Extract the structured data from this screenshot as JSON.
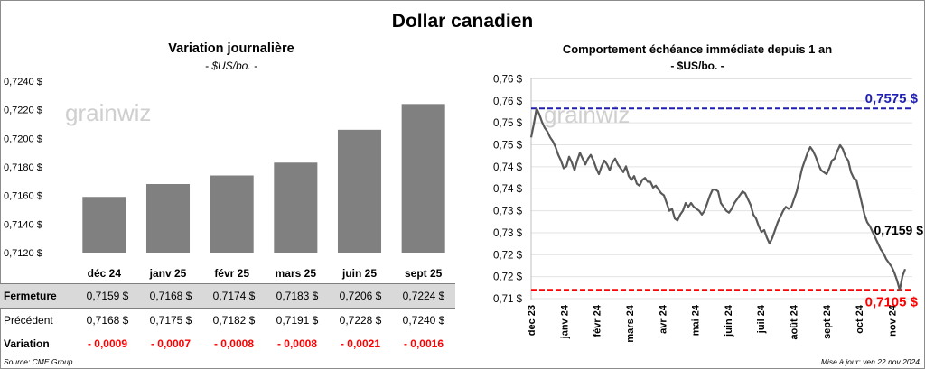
{
  "title": "Dollar canadien",
  "left": {
    "title": "Variation  journalière",
    "unit": "- $US/bo. -",
    "watermark": "grainwiz",
    "chart_data": {
      "type": "bar",
      "categories": [
        "déc 24",
        "janv 25",
        "févr 25",
        "mars 25",
        "juin 25",
        "sept 25"
      ],
      "values": [
        0.7159,
        0.7168,
        0.7174,
        0.7183,
        0.7206,
        0.7224
      ],
      "ylim": [
        0.712,
        0.724
      ],
      "yticks": [
        0.712,
        0.714,
        0.716,
        0.718,
        0.72,
        0.722,
        0.724
      ],
      "ytick_labels": [
        "0,7120 $",
        "0,7140 $",
        "0,7160 $",
        "0,7180 $",
        "0,7200 $",
        "0,7220 $",
        "0,7240 $"
      ],
      "bar_color": "#808080"
    },
    "table": {
      "rows": [
        {
          "label": "Fermeture",
          "values": [
            "0,7159  $",
            "0,7168  $",
            "0,7174  $",
            "0,7183  $",
            "0,7206  $",
            "0,7224  $"
          ]
        },
        {
          "label": "Précédent",
          "values": [
            "0,7168  $",
            "0,7175  $",
            "0,7182  $",
            "0,7191  $",
            "0,7228  $",
            "0,7240  $"
          ]
        },
        {
          "label": "Variation",
          "values": [
            "- 0,0009",
            "- 0,0007",
            "- 0,0008",
            "- 0,0008",
            "- 0,0021",
            "- 0,0016"
          ]
        }
      ]
    }
  },
  "right": {
    "title": "Comportement échéance immédiate depuis 1 an",
    "unit": "- $US/bo. -",
    "watermark": "grainwiz",
    "chart_data": {
      "type": "line",
      "ylim": [
        0.708,
        0.7655
      ],
      "ytick_labels": [
        "0,71 $",
        "0,72 $",
        "0,72 $",
        "0,73 $",
        "0,73 $",
        "0,74 $",
        "0,74 $",
        "0,75 $",
        "0,75 $",
        "0,76 $",
        "0,76 $"
      ],
      "xtick_labels": [
        "déc 23",
        "janv 24",
        "févr 24",
        "mars 24",
        "avr 24",
        "mai 24",
        "juin 24",
        "juil 24",
        "août 24",
        "sept 24",
        "oct 24",
        "nov 24"
      ],
      "line_color": "#595959",
      "high": {
        "value": 0.7575,
        "label": "0,7575 $",
        "color": "#1f1fb4"
      },
      "low": {
        "value": 0.7105,
        "label": "0,7105 $",
        "color": "#ff0000"
      },
      "last_label": "0,7159 $",
      "series": [
        {
          "values": [
            0.75,
            0.7535,
            0.7575,
            0.756,
            0.754,
            0.7525,
            0.7515,
            0.75,
            0.749,
            0.7475,
            0.7455,
            0.744,
            0.742,
            0.7425,
            0.745,
            0.7435,
            0.7415,
            0.744,
            0.746,
            0.7445,
            0.743,
            0.7445,
            0.7455,
            0.744,
            0.742,
            0.7405,
            0.7425,
            0.744,
            0.743,
            0.7415,
            0.7435,
            0.7445,
            0.743,
            0.742,
            0.741,
            0.7425,
            0.74,
            0.739,
            0.74,
            0.738,
            0.7375,
            0.739,
            0.7395,
            0.7385,
            0.7385,
            0.737,
            0.7375,
            0.7365,
            0.7355,
            0.735,
            0.733,
            0.731,
            0.7315,
            0.729,
            0.7285,
            0.73,
            0.731,
            0.733,
            0.732,
            0.733,
            0.732,
            0.7315,
            0.731,
            0.73,
            0.731,
            0.733,
            0.735,
            0.7365,
            0.7365,
            0.736,
            0.733,
            0.732,
            0.731,
            0.7305,
            0.7315,
            0.733,
            0.734,
            0.735,
            0.736,
            0.7355,
            0.734,
            0.7325,
            0.73,
            0.729,
            0.727,
            0.7255,
            0.726,
            0.724,
            0.7225,
            0.724,
            0.726,
            0.728,
            0.7295,
            0.731,
            0.732,
            0.7315,
            0.732,
            0.734,
            0.736,
            0.739,
            0.742,
            0.744,
            0.746,
            0.7475,
            0.7465,
            0.745,
            0.743,
            0.7415,
            0.741,
            0.7405,
            0.742,
            0.744,
            0.7445,
            0.7465,
            0.748,
            0.747,
            0.745,
            0.744,
            0.741,
            0.7395,
            0.739,
            0.736,
            0.733,
            0.73,
            0.728,
            0.727,
            0.7255,
            0.724,
            0.7225,
            0.721,
            0.72,
            0.7185,
            0.7175,
            0.7165,
            0.715,
            0.713,
            0.7105,
            0.714,
            0.7159
          ]
        }
      ]
    }
  },
  "footer": {
    "source": "Source: CME Group",
    "updated": "Mise à jour: ven 22 nov 2024"
  }
}
